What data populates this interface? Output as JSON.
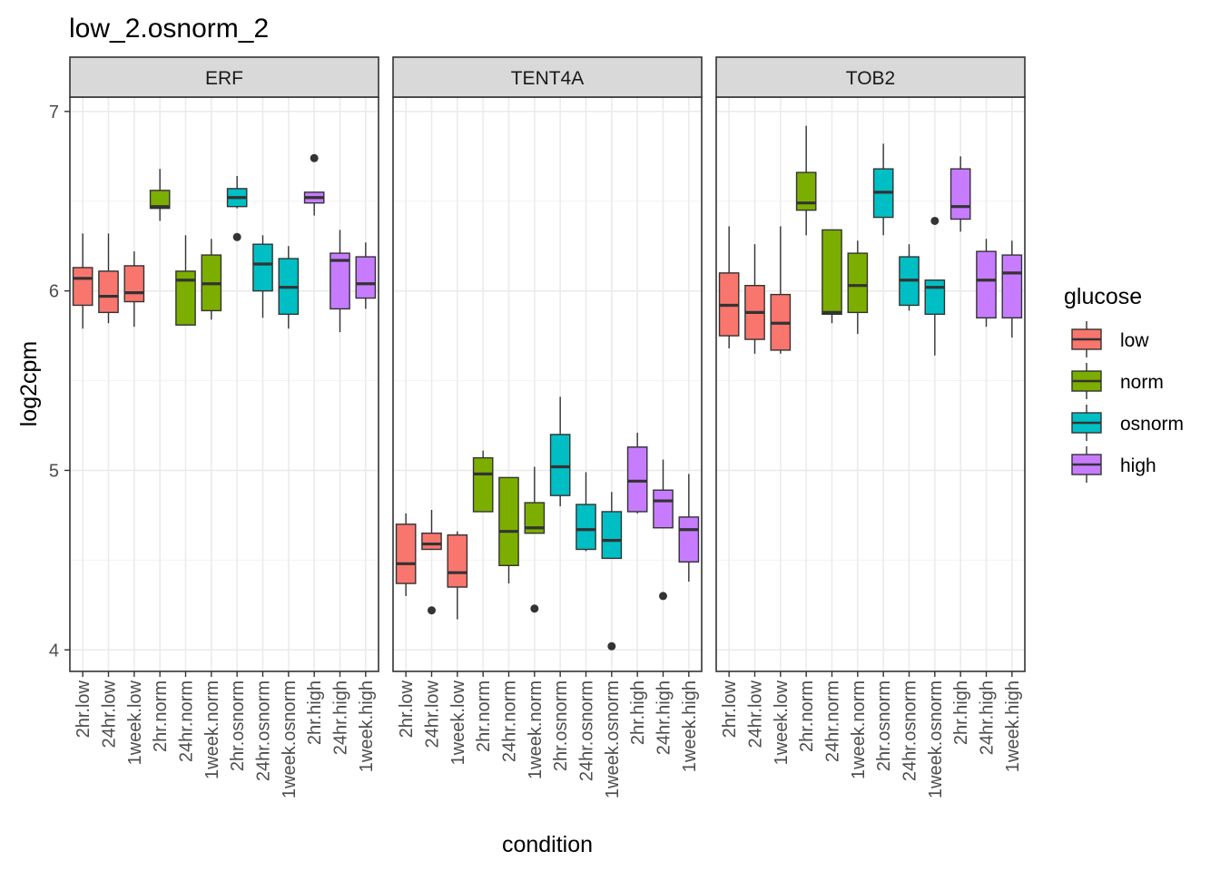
{
  "chart_data": {
    "type": "boxplot",
    "title": "low_2.osnorm_2",
    "xlabel": "condition",
    "ylabel": "log2cpm",
    "ylim": [
      3.88,
      7.08
    ],
    "yticks": [
      4,
      5,
      6,
      7
    ],
    "grid": true,
    "legend": {
      "title": "glucose",
      "placement": "right",
      "entries": [
        {
          "name": "low",
          "color": "#F8766D"
        },
        {
          "name": "norm",
          "color": "#7CAE00"
        },
        {
          "name": "osnorm",
          "color": "#00BFC4"
        },
        {
          "name": "high",
          "color": "#C77CFF"
        }
      ]
    },
    "categories": [
      "2hr.low",
      "24hr.low",
      "1week.low",
      "2hr.norm",
      "24hr.norm",
      "1week.norm",
      "2hr.osnorm",
      "24hr.osnorm",
      "1week.osnorm",
      "2hr.high",
      "24hr.high",
      "1week.high"
    ],
    "category_group": [
      "low",
      "low",
      "low",
      "norm",
      "norm",
      "norm",
      "osnorm",
      "osnorm",
      "osnorm",
      "high",
      "high",
      "high"
    ],
    "facets": [
      {
        "name": "ERF",
        "boxes": [
          {
            "whisker_low": 5.79,
            "q1": 5.92,
            "median": 6.07,
            "q3": 6.13,
            "whisker_high": 6.32,
            "outliers": []
          },
          {
            "whisker_low": 5.82,
            "q1": 5.88,
            "median": 5.97,
            "q3": 6.11,
            "whisker_high": 6.32,
            "outliers": []
          },
          {
            "whisker_low": 5.8,
            "q1": 5.94,
            "median": 5.99,
            "q3": 6.14,
            "whisker_high": 6.22,
            "outliers": []
          },
          {
            "whisker_low": 6.39,
            "q1": 6.46,
            "median": 6.47,
            "q3": 6.56,
            "whisker_high": 6.68,
            "outliers": []
          },
          {
            "whisker_low": 5.81,
            "q1": 5.81,
            "median": 6.06,
            "q3": 6.11,
            "whisker_high": 6.31,
            "outliers": []
          },
          {
            "whisker_low": 5.84,
            "q1": 5.89,
            "median": 6.04,
            "q3": 6.2,
            "whisker_high": 6.29,
            "outliers": []
          },
          {
            "whisker_low": 6.46,
            "q1": 6.47,
            "median": 6.52,
            "q3": 6.57,
            "whisker_high": 6.64,
            "outliers": [
              6.3
            ]
          },
          {
            "whisker_low": 5.85,
            "q1": 6.0,
            "median": 6.15,
            "q3": 6.26,
            "whisker_high": 6.31,
            "outliers": []
          },
          {
            "whisker_low": 5.79,
            "q1": 5.87,
            "median": 6.02,
            "q3": 6.18,
            "whisker_high": 6.25,
            "outliers": []
          },
          {
            "whisker_low": 6.42,
            "q1": 6.49,
            "median": 6.52,
            "q3": 6.55,
            "whisker_high": 6.55,
            "outliers": [
              6.74
            ]
          },
          {
            "whisker_low": 5.77,
            "q1": 5.9,
            "median": 6.17,
            "q3": 6.21,
            "whisker_high": 6.34,
            "outliers": []
          },
          {
            "whisker_low": 5.9,
            "q1": 5.96,
            "median": 6.04,
            "q3": 6.19,
            "whisker_high": 6.27,
            "outliers": []
          }
        ]
      },
      {
        "name": "TENT4A",
        "boxes": [
          {
            "whisker_low": 4.3,
            "q1": 4.37,
            "median": 4.48,
            "q3": 4.7,
            "whisker_high": 4.76,
            "outliers": []
          },
          {
            "whisker_low": 4.56,
            "q1": 4.56,
            "median": 4.59,
            "q3": 4.65,
            "whisker_high": 4.78,
            "outliers": [
              4.22
            ]
          },
          {
            "whisker_low": 4.17,
            "q1": 4.35,
            "median": 4.43,
            "q3": 4.64,
            "whisker_high": 4.66,
            "outliers": []
          },
          {
            "whisker_low": 4.77,
            "q1": 4.77,
            "median": 4.98,
            "q3": 5.07,
            "whisker_high": 5.11,
            "outliers": []
          },
          {
            "whisker_low": 4.37,
            "q1": 4.47,
            "median": 4.66,
            "q3": 4.96,
            "whisker_high": 4.96,
            "outliers": []
          },
          {
            "whisker_low": 4.65,
            "q1": 4.65,
            "median": 4.68,
            "q3": 4.82,
            "whisker_high": 5.02,
            "outliers": [
              4.23
            ]
          },
          {
            "whisker_low": 4.8,
            "q1": 4.86,
            "median": 5.02,
            "q3": 5.2,
            "whisker_high": 5.41,
            "outliers": []
          },
          {
            "whisker_low": 4.55,
            "q1": 4.56,
            "median": 4.67,
            "q3": 4.81,
            "whisker_high": 4.99,
            "outliers": []
          },
          {
            "whisker_low": 4.51,
            "q1": 4.51,
            "median": 4.61,
            "q3": 4.77,
            "whisker_high": 4.88,
            "outliers": [
              4.02
            ]
          },
          {
            "whisker_low": 4.76,
            "q1": 4.77,
            "median": 4.94,
            "q3": 5.13,
            "whisker_high": 5.21,
            "outliers": []
          },
          {
            "whisker_low": 4.68,
            "q1": 4.68,
            "median": 4.83,
            "q3": 4.89,
            "whisker_high": 5.06,
            "outliers": [
              4.3
            ]
          },
          {
            "whisker_low": 4.38,
            "q1": 4.49,
            "median": 4.67,
            "q3": 4.74,
            "whisker_high": 4.98,
            "outliers": []
          }
        ]
      },
      {
        "name": "TOB2",
        "boxes": [
          {
            "whisker_low": 5.68,
            "q1": 5.75,
            "median": 5.92,
            "q3": 6.1,
            "whisker_high": 6.36,
            "outliers": []
          },
          {
            "whisker_low": 5.65,
            "q1": 5.73,
            "median": 5.88,
            "q3": 6.03,
            "whisker_high": 6.26,
            "outliers": []
          },
          {
            "whisker_low": 5.65,
            "q1": 5.67,
            "median": 5.82,
            "q3": 5.98,
            "whisker_high": 6.36,
            "outliers": []
          },
          {
            "whisker_low": 6.31,
            "q1": 6.45,
            "median": 6.49,
            "q3": 6.66,
            "whisker_high": 6.92,
            "outliers": []
          },
          {
            "whisker_low": 5.82,
            "q1": 5.87,
            "median": 5.88,
            "q3": 6.34,
            "whisker_high": 6.34,
            "outliers": []
          },
          {
            "whisker_low": 5.76,
            "q1": 5.88,
            "median": 6.03,
            "q3": 6.21,
            "whisker_high": 6.28,
            "outliers": []
          },
          {
            "whisker_low": 6.31,
            "q1": 6.41,
            "median": 6.55,
            "q3": 6.68,
            "whisker_high": 6.82,
            "outliers": []
          },
          {
            "whisker_low": 5.89,
            "q1": 5.92,
            "median": 6.06,
            "q3": 6.19,
            "whisker_high": 6.26,
            "outliers": []
          },
          {
            "whisker_low": 5.64,
            "q1": 5.87,
            "median": 6.02,
            "q3": 6.06,
            "whisker_high": 6.06,
            "outliers": [
              6.39
            ]
          },
          {
            "whisker_low": 6.33,
            "q1": 6.4,
            "median": 6.47,
            "q3": 6.68,
            "whisker_high": 6.75,
            "outliers": []
          },
          {
            "whisker_low": 5.8,
            "q1": 5.85,
            "median": 6.06,
            "q3": 6.22,
            "whisker_high": 6.29,
            "outliers": []
          },
          {
            "whisker_low": 5.74,
            "q1": 5.85,
            "median": 6.1,
            "q3": 6.2,
            "whisker_high": 6.28,
            "outliers": []
          }
        ]
      }
    ]
  }
}
